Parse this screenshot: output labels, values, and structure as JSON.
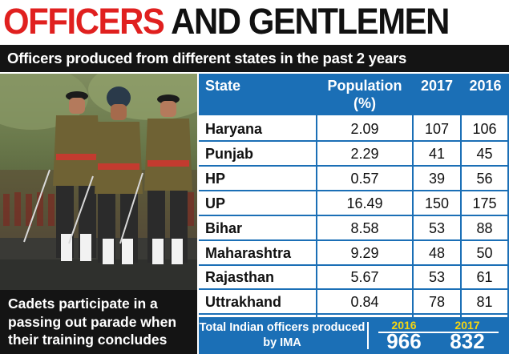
{
  "headline": {
    "red": "OFFICERS",
    "black": "AND GENTLEMEN"
  },
  "subheader": "Officers produced from different states in the past 2 years",
  "caption": "Cadets participate in a passing out parade when their training concludes",
  "chart_data": {
    "type": "table",
    "columns": [
      "State",
      "Population (%)",
      "2017",
      "2016"
    ],
    "rows": [
      {
        "state": "Haryana",
        "population": "2.09",
        "y2017": "107",
        "y2016": "106"
      },
      {
        "state": "Punjab",
        "population": "2.29",
        "y2017": "41",
        "y2016": "45"
      },
      {
        "state": "HP",
        "population": "0.57",
        "y2017": "39",
        "y2016": "56"
      },
      {
        "state": "UP",
        "population": "16.49",
        "y2017": "150",
        "y2016": "175"
      },
      {
        "state": "Bihar",
        "population": "8.58",
        "y2017": "53",
        "y2016": "88"
      },
      {
        "state": "Maharashtra",
        "population": "9.29",
        "y2017": "48",
        "y2016": "50"
      },
      {
        "state": "Rajasthan",
        "population": "5.67",
        "y2017": "53",
        "y2016": "61"
      },
      {
        "state": "Uttrakhand",
        "population": "0.84",
        "y2017": "78",
        "y2016": "81"
      }
    ],
    "total": {
      "label": "Total Indian officers produced by IMA",
      "year_a": "2016",
      "value_a": "966",
      "year_b": "2017",
      "value_b": "832"
    }
  },
  "colors": {
    "red": "#e0201f",
    "blue": "#1b6fb6",
    "dark": "#141414",
    "yellow": "#f5d510"
  }
}
